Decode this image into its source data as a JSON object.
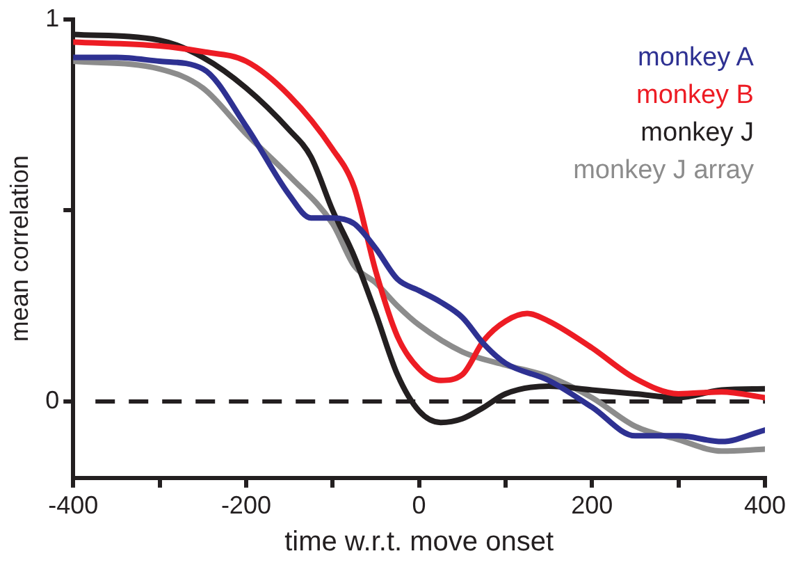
{
  "chart_data": {
    "type": "line",
    "xlabel": "time w.r.t. move onset",
    "ylabel": "mean correlation",
    "xlim": [
      -400,
      400
    ],
    "xticks": [
      -400,
      {
        "value": -300,
        "label": null
      },
      -200,
      {
        "value": -100,
        "label": null
      },
      0,
      {
        "value": 100,
        "label": null
      },
      200,
      {
        "value": 300,
        "label": null
      },
      400
    ],
    "ylim": [
      -0.2,
      1
    ],
    "yticks": [
      0,
      {
        "value": 0.5,
        "label": null
      },
      1
    ],
    "grid": false,
    "legend": "top right",
    "marker": "none",
    "line_style": "solid",
    "ref_lines": [
      {
        "axis": "y",
        "value": 0,
        "label": null,
        "color": "#231f20",
        "line_style": "dashed"
      }
    ],
    "series": [
      {
        "name": "monkey A",
        "color": "#2e3192",
        "x": [
          -400,
          -350,
          -300,
          -250,
          -200,
          -150,
          -125,
          -100,
          -75,
          -50,
          -25,
          0,
          25,
          50,
          75,
          100,
          150,
          200,
          250,
          300,
          350,
          400
        ],
        "values": [
          0.9,
          0.9,
          0.89,
          0.87,
          0.72,
          0.54,
          0.48,
          0.48,
          0.465,
          0.4,
          0.32,
          0.29,
          0.26,
          0.22,
          0.15,
          0.1,
          0.055,
          -0.015,
          -0.09,
          -0.09,
          -0.105,
          -0.075
        ]
      },
      {
        "name": "monkey B",
        "color": "#ed1c24",
        "x": [
          -400,
          -300,
          -250,
          -200,
          -150,
          -100,
          -75,
          -50,
          -25,
          0,
          25,
          50,
          75,
          100,
          125,
          150,
          200,
          250,
          300,
          350,
          400
        ],
        "values": [
          0.94,
          0.93,
          0.915,
          0.89,
          0.8,
          0.66,
          0.56,
          0.34,
          0.17,
          0.085,
          0.055,
          0.07,
          0.16,
          0.21,
          0.23,
          0.21,
          0.14,
          0.06,
          0.02,
          0.025,
          0.01
        ]
      },
      {
        "name": "monkey J",
        "color": "#231f20",
        "x": [
          -400,
          -300,
          -250,
          -200,
          -150,
          -125,
          -100,
          -75,
          -50,
          -25,
          0,
          25,
          50,
          75,
          100,
          150,
          200,
          250,
          300,
          350,
          400
        ],
        "values": [
          0.96,
          0.945,
          0.9,
          0.82,
          0.71,
          0.64,
          0.5,
          0.38,
          0.23,
          0.07,
          -0.025,
          -0.055,
          -0.045,
          -0.015,
          0.02,
          0.04,
          0.03,
          0.02,
          0.01,
          0.03,
          0.033
        ]
      },
      {
        "name": "monkey J array",
        "color": "#8c8c8c",
        "x": [
          -400,
          -300,
          -250,
          -200,
          -150,
          -100,
          -75,
          -50,
          -25,
          0,
          50,
          100,
          150,
          200,
          250,
          300,
          350,
          400
        ],
        "values": [
          0.89,
          0.87,
          0.82,
          0.7,
          0.59,
          0.465,
          0.355,
          0.31,
          0.25,
          0.2,
          0.13,
          0.095,
          0.065,
          0.01,
          -0.065,
          -0.1,
          -0.13,
          -0.125
        ]
      }
    ]
  }
}
